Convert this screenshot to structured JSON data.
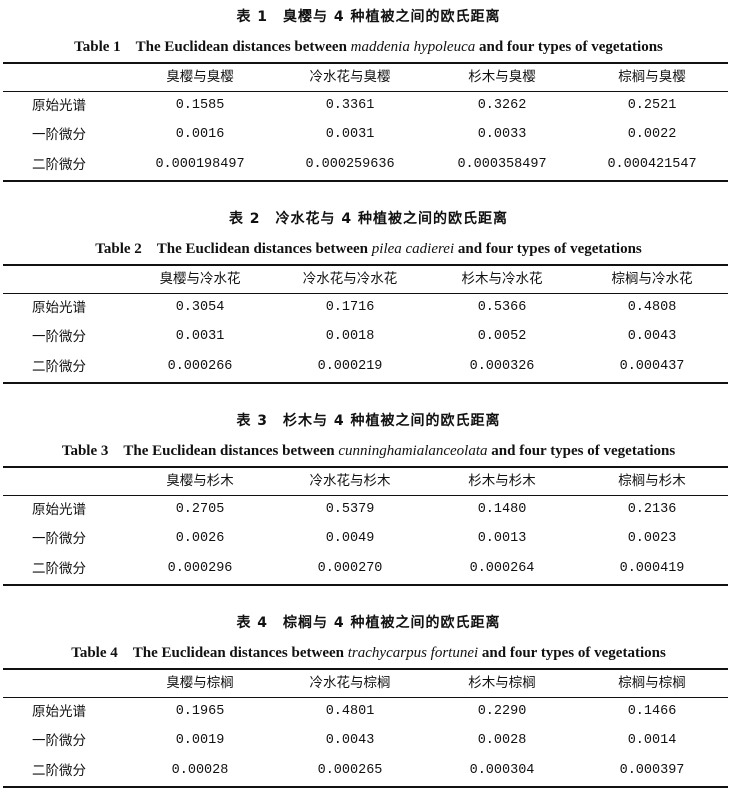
{
  "tables": [
    {
      "cn_title": "表 1　臭樱与 4 种植被之间的欧氏距离",
      "en_prefix": "Table 1　The Euclidean distances between ",
      "en_species": "maddenia hypoleuca",
      "en_suffix": " and four types of vegetations",
      "headers": [
        "臭樱与臭樱",
        "冷水花与臭樱",
        "杉木与臭樱",
        "棕榈与臭樱"
      ],
      "rows": [
        {
          "label": "原始光谱",
          "values": [
            "0.1585",
            "0.3361",
            "0.3262",
            "0.2521"
          ]
        },
        {
          "label": "一阶微分",
          "values": [
            "0.0016",
            "0.0031",
            "0.0033",
            "0.0022"
          ]
        },
        {
          "label": "二阶微分",
          "values": [
            "0.000198497",
            "0.000259636",
            "0.000358497",
            "0.000421547"
          ]
        }
      ]
    },
    {
      "cn_title": "表 2　冷水花与 4 种植被之间的欧氏距离",
      "en_prefix": "Table 2　The Euclidean distances between ",
      "en_species": "pilea cadierei",
      "en_suffix": " and four types of vegetations",
      "headers": [
        "臭樱与冷水花",
        "冷水花与冷水花",
        "杉木与冷水花",
        "棕榈与冷水花"
      ],
      "rows": [
        {
          "label": "原始光谱",
          "values": [
            "0.3054",
            "0.1716",
            "0.5366",
            "0.4808"
          ]
        },
        {
          "label": "一阶微分",
          "values": [
            "0.0031",
            "0.0018",
            "0.0052",
            "0.0043"
          ]
        },
        {
          "label": "二阶微分",
          "values": [
            "0.000266",
            "0.000219",
            "0.000326",
            "0.000437"
          ]
        }
      ]
    },
    {
      "cn_title": "表 3　杉木与 4 种植被之间的欧氏距离",
      "en_prefix": "Table 3　The Euclidean distances between ",
      "en_species": "cunninghamialanceolata",
      "en_suffix": " and four types of vegetations",
      "headers": [
        "臭樱与杉木",
        "冷水花与杉木",
        "杉木与杉木",
        "棕榈与杉木"
      ],
      "rows": [
        {
          "label": "原始光谱",
          "values": [
            "0.2705",
            "0.5379",
            "0.1480",
            "0.2136"
          ]
        },
        {
          "label": "一阶微分",
          "values": [
            "0.0026",
            "0.0049",
            "0.0013",
            "0.0023"
          ]
        },
        {
          "label": "二阶微分",
          "values": [
            "0.000296",
            "0.000270",
            "0.000264",
            "0.000419"
          ]
        }
      ]
    },
    {
      "cn_title": "表 4　棕榈与 4 种植被之间的欧氏距离",
      "en_prefix": "Table 4　The Euclidean distances between ",
      "en_species": "trachycarpus fortunei",
      "en_suffix": " and four types of vegetations",
      "headers": [
        "臭樱与棕榈",
        "冷水花与棕榈",
        "杉木与棕榈",
        "棕榈与棕榈"
      ],
      "rows": [
        {
          "label": "原始光谱",
          "values": [
            "0.1965",
            "0.4801",
            "0.2290",
            "0.1466"
          ]
        },
        {
          "label": "一阶微分",
          "values": [
            "0.0019",
            "0.0043",
            "0.0028",
            "0.0014"
          ]
        },
        {
          "label": "二阶微分",
          "values": [
            "0.00028",
            "0.000265",
            "0.000304",
            "0.000397"
          ]
        }
      ]
    }
  ]
}
